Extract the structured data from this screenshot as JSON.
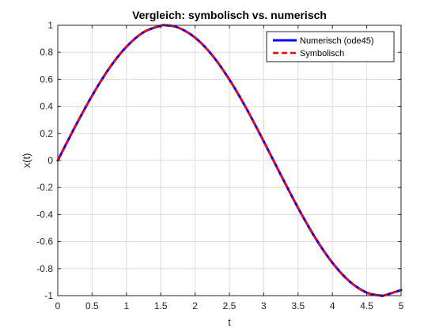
{
  "chart_data": {
    "type": "line",
    "title": "Vergleich: symbolisch vs. numerisch",
    "xlabel": "t",
    "ylabel": "x(t)",
    "xlim": [
      0,
      5
    ],
    "ylim": [
      -1,
      1
    ],
    "xticks": [
      0,
      0.5,
      1,
      1.5,
      2,
      2.5,
      3,
      3.5,
      4,
      4.5,
      5
    ],
    "xtick_labels": [
      "0",
      "0.5",
      "1",
      "1.5",
      "2",
      "2.5",
      "3",
      "3.5",
      "4",
      "4.5",
      "5"
    ],
    "yticks": [
      -1,
      -0.8,
      -0.6,
      -0.4,
      -0.2,
      0,
      0.2,
      0.4,
      0.6,
      0.8,
      1
    ],
    "ytick_labels": [
      "-1",
      "-0.8",
      "-0.6",
      "-0.4",
      "-0.2",
      "0",
      "0.2",
      "0.4",
      "0.6",
      "0.8",
      "1"
    ],
    "grid": true,
    "legend_position": "top-right",
    "x": [
      0,
      0.25,
      0.5,
      0.75,
      1,
      1.25,
      1.5,
      1.5708,
      1.75,
      2,
      2.25,
      2.5,
      2.75,
      3,
      3.25,
      3.5,
      3.75,
      4,
      4.25,
      4.5,
      4.7124,
      4.75,
      5
    ],
    "series": [
      {
        "name": "Numerisch (ode45)",
        "color": "#0000ff",
        "line_style": "solid",
        "values": [
          0,
          0.247,
          0.479,
          0.682,
          0.841,
          0.949,
          0.997,
          1.0,
          0.984,
          0.909,
          0.778,
          0.598,
          0.382,
          0.141,
          -0.108,
          -0.351,
          -0.572,
          -0.757,
          -0.895,
          -0.978,
          -1.0,
          -0.999,
          -0.959
        ]
      },
      {
        "name": "Symbolisch",
        "color": "#ff0000",
        "line_style": "dashed",
        "values": [
          0,
          0.247,
          0.479,
          0.682,
          0.841,
          0.949,
          0.997,
          1.0,
          0.984,
          0.909,
          0.778,
          0.598,
          0.382,
          0.141,
          -0.108,
          -0.351,
          -0.572,
          -0.757,
          -0.895,
          -0.978,
          -1.0,
          -0.999,
          -0.959
        ]
      }
    ]
  }
}
